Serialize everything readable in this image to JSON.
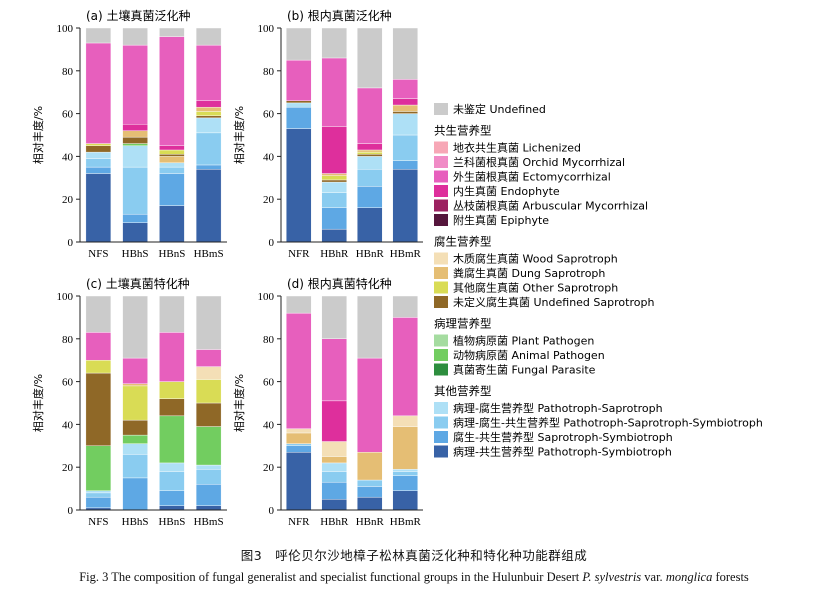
{
  "figure": {
    "caption_zh": "图3　呼伦贝尔沙地樟子松林真菌泛化种和特化种功能群组成",
    "caption_en": "Fig. 3   The composition of fungal generalist and specialist functional groups in the Hulunbuir Desert P. sylvestris var. monglica forests",
    "caption_en_parts": [
      "Fig. 3   The composition of fungal generalist and specialist functional groups in the Hulunbuir Desert ",
      "P. sylvestris",
      " var. ",
      "monglica",
      " forests"
    ]
  },
  "legend": {
    "groups": [
      {
        "heading": "",
        "items": [
          {
            "key": "undefined",
            "label": "未鉴定 Undefined",
            "color": "#cbcbcb"
          }
        ]
      },
      {
        "heading": "共生营养型",
        "items": [
          {
            "key": "lichenized",
            "label": "地衣共生真菌 Lichenized",
            "color": "#f7a7b6"
          },
          {
            "key": "orchid",
            "label": "兰科菌根真菌 Orchid Mycorrhizal",
            "color": "#f08bc6"
          },
          {
            "key": "ecto",
            "label": "外生菌根真菌 Ectomycorrhizal",
            "color": "#e75fbd"
          },
          {
            "key": "endo",
            "label": "内生真菌 Endophyte",
            "color": "#de2f9c"
          },
          {
            "key": "arbuscular",
            "label": "丛枝菌根真菌 Arbuscular Mycorrhizal",
            "color": "#9c2160"
          },
          {
            "key": "epiphyte",
            "label": "附生真菌 Epiphyte",
            "color": "#55163c"
          }
        ]
      },
      {
        "heading": "腐生营养型",
        "items": [
          {
            "key": "wood",
            "label": "木质腐生真菌 Wood Saprotroph",
            "color": "#f4dfb6"
          },
          {
            "key": "dung",
            "label": "粪腐生真菌 Dung Saprotroph",
            "color": "#e5be74"
          },
          {
            "key": "other_sap",
            "label": "其他腐生真菌 Other Saprotroph",
            "color": "#d9dc55"
          },
          {
            "key": "undef_sap",
            "label": "未定义腐生真菌 Undefined Saprotroph",
            "color": "#8f6827"
          }
        ]
      },
      {
        "heading": "病理营养型",
        "items": [
          {
            "key": "plant_path",
            "label": "植物病原菌 Plant Pathogen",
            "color": "#a5dca0"
          },
          {
            "key": "animal_path",
            "label": "动物病原菌 Animal Pathogen",
            "color": "#72cd60"
          },
          {
            "key": "fungal_par",
            "label": "真菌寄生菌 Fungal Parasite",
            "color": "#2d8e3e"
          }
        ]
      },
      {
        "heading": "其他营养型",
        "items": [
          {
            "key": "path_sap",
            "label": "病理-腐生营养型 Pathotroph-Saprotroph",
            "color": "#aee0f6"
          },
          {
            "key": "path_sap_sym",
            "label": "病理-腐生-共生营养型 Pathotroph-Saprotroph-Symbiotroph",
            "color": "#8accf0"
          },
          {
            "key": "sap_sym",
            "label": "腐生-共生营养型 Saprotroph-Symbiotroph",
            "color": "#5ea8e4"
          },
          {
            "key": "path_sym",
            "label": "病理-共生营养型 Pathotroph-Symbiotroph",
            "color": "#3862a6"
          }
        ]
      }
    ]
  },
  "chart_data": [
    {
      "type": "bar",
      "stacked": true,
      "title": "(a) 土壤真菌泛化种",
      "ylabel": "相对丰度/%",
      "ylim": [
        0,
        100
      ],
      "yticks": [
        0,
        20,
        40,
        60,
        80,
        100
      ],
      "categories": [
        "NFS",
        "HBhS",
        "HBnS",
        "HBmS"
      ],
      "bars": [
        [
          {
            "k": "path_sym",
            "v": 32
          },
          {
            "k": "sap_sym",
            "v": 3
          },
          {
            "k": "path_sap_sym",
            "v": 4
          },
          {
            "k": "path_sap",
            "v": 3
          },
          {
            "k": "undef_sap",
            "v": 3
          },
          {
            "k": "other_sap",
            "v": 1
          },
          {
            "k": "ecto",
            "v": 47
          },
          {
            "k": "undefined",
            "v": 7
          }
        ],
        [
          {
            "k": "path_sym",
            "v": 9
          },
          {
            "k": "sap_sym",
            "v": 4
          },
          {
            "k": "path_sap_sym",
            "v": 22
          },
          {
            "k": "path_sap",
            "v": 10
          },
          {
            "k": "animal_path",
            "v": 1
          },
          {
            "k": "undef_sap",
            "v": 3
          },
          {
            "k": "dung",
            "v": 3
          },
          {
            "k": "endo",
            "v": 3
          },
          {
            "k": "ecto",
            "v": 37
          },
          {
            "k": "undefined",
            "v": 8
          }
        ],
        [
          {
            "k": "path_sym",
            "v": 17
          },
          {
            "k": "sap_sym",
            "v": 15
          },
          {
            "k": "path_sap_sym",
            "v": 3
          },
          {
            "k": "path_sap",
            "v": 2
          },
          {
            "k": "dung",
            "v": 3
          },
          {
            "k": "undef_sap",
            "v": 1
          },
          {
            "k": "other_sap",
            "v": 2
          },
          {
            "k": "endo",
            "v": 2
          },
          {
            "k": "ecto",
            "v": 51
          },
          {
            "k": "undefined",
            "v": 4
          }
        ],
        [
          {
            "k": "path_sym",
            "v": 34
          },
          {
            "k": "sap_sym",
            "v": 2
          },
          {
            "k": "path_sap_sym",
            "v": 15
          },
          {
            "k": "path_sap",
            "v": 7
          },
          {
            "k": "undef_sap",
            "v": 1
          },
          {
            "k": "other_sap",
            "v": 2
          },
          {
            "k": "dung",
            "v": 2
          },
          {
            "k": "endo",
            "v": 3
          },
          {
            "k": "ecto",
            "v": 26
          },
          {
            "k": "undefined",
            "v": 8
          }
        ]
      ]
    },
    {
      "type": "bar",
      "stacked": true,
      "title": "(b) 根内真菌泛化种",
      "ylabel": "相对丰度/%",
      "ylim": [
        0,
        100
      ],
      "yticks": [
        0,
        20,
        40,
        60,
        80,
        100
      ],
      "categories": [
        "NFR",
        "HBhR",
        "HBnR",
        "HBmR"
      ],
      "bars": [
        [
          {
            "k": "path_sym",
            "v": 53
          },
          {
            "k": "sap_sym",
            "v": 10
          },
          {
            "k": "path_sap",
            "v": 2
          },
          {
            "k": "undef_sap",
            "v": 1
          },
          {
            "k": "ecto",
            "v": 19
          },
          {
            "k": "undefined",
            "v": 15
          }
        ],
        [
          {
            "k": "path_sym",
            "v": 6
          },
          {
            "k": "sap_sym",
            "v": 10
          },
          {
            "k": "path_sap_sym",
            "v": 7
          },
          {
            "k": "path_sap",
            "v": 5
          },
          {
            "k": "undef_sap",
            "v": 1
          },
          {
            "k": "other_sap",
            "v": 2
          },
          {
            "k": "dung",
            "v": 1
          },
          {
            "k": "endo",
            "v": 22
          },
          {
            "k": "ecto",
            "v": 32
          },
          {
            "k": "undefined",
            "v": 14
          }
        ],
        [
          {
            "k": "path_sym",
            "v": 16
          },
          {
            "k": "sap_sym",
            "v": 10
          },
          {
            "k": "path_sap_sym",
            "v": 8
          },
          {
            "k": "path_sap",
            "v": 6
          },
          {
            "k": "undef_sap",
            "v": 1
          },
          {
            "k": "other_sap",
            "v": 1
          },
          {
            "k": "dung",
            "v": 1
          },
          {
            "k": "endo",
            "v": 3
          },
          {
            "k": "ecto",
            "v": 26
          },
          {
            "k": "undefined",
            "v": 28
          }
        ],
        [
          {
            "k": "path_sym",
            "v": 34
          },
          {
            "k": "sap_sym",
            "v": 4
          },
          {
            "k": "path_sap_sym",
            "v": 12
          },
          {
            "k": "path_sap",
            "v": 10
          },
          {
            "k": "undef_sap",
            "v": 1
          },
          {
            "k": "dung",
            "v": 3
          },
          {
            "k": "endo",
            "v": 3
          },
          {
            "k": "ecto",
            "v": 9
          },
          {
            "k": "undefined",
            "v": 24
          }
        ]
      ]
    },
    {
      "type": "bar",
      "stacked": true,
      "title": "(c) 土壤真菌特化种",
      "ylabel": "相对丰度/%",
      "ylim": [
        0,
        100
      ],
      "yticks": [
        0,
        20,
        40,
        60,
        80,
        100
      ],
      "categories": [
        "NFS",
        "HBhS",
        "HBnS",
        "HBmS"
      ],
      "bars": [
        [
          {
            "k": "path_sym",
            "v": 1
          },
          {
            "k": "sap_sym",
            "v": 5
          },
          {
            "k": "path_sap_sym",
            "v": 2
          },
          {
            "k": "path_sap",
            "v": 1
          },
          {
            "k": "animal_path",
            "v": 21
          },
          {
            "k": "undef_sap",
            "v": 34
          },
          {
            "k": "other_sap",
            "v": 6
          },
          {
            "k": "ecto",
            "v": 13
          },
          {
            "k": "undefined",
            "v": 17
          }
        ],
        [
          {
            "k": "sap_sym",
            "v": 15
          },
          {
            "k": "path_sap_sym",
            "v": 11
          },
          {
            "k": "path_sap",
            "v": 5
          },
          {
            "k": "animal_path",
            "v": 4
          },
          {
            "k": "undef_sap",
            "v": 7
          },
          {
            "k": "other_sap",
            "v": 16
          },
          {
            "k": "dung",
            "v": 1
          },
          {
            "k": "ecto",
            "v": 12
          },
          {
            "k": "undefined",
            "v": 29
          }
        ],
        [
          {
            "k": "path_sym",
            "v": 2
          },
          {
            "k": "sap_sym",
            "v": 7
          },
          {
            "k": "path_sap_sym",
            "v": 9
          },
          {
            "k": "path_sap",
            "v": 4
          },
          {
            "k": "animal_path",
            "v": 22
          },
          {
            "k": "undef_sap",
            "v": 8
          },
          {
            "k": "other_sap",
            "v": 8
          },
          {
            "k": "ecto",
            "v": 23
          },
          {
            "k": "undefined",
            "v": 17
          }
        ],
        [
          {
            "k": "path_sym",
            "v": 2
          },
          {
            "k": "sap_sym",
            "v": 10
          },
          {
            "k": "path_sap_sym",
            "v": 7
          },
          {
            "k": "path_sap",
            "v": 2
          },
          {
            "k": "animal_path",
            "v": 18
          },
          {
            "k": "undef_sap",
            "v": 11
          },
          {
            "k": "other_sap",
            "v": 11
          },
          {
            "k": "wood",
            "v": 6
          },
          {
            "k": "ecto",
            "v": 8
          },
          {
            "k": "undefined",
            "v": 25
          }
        ]
      ]
    },
    {
      "type": "bar",
      "stacked": true,
      "title": "(d) 根内真菌特化种",
      "ylabel": "相对丰度/%",
      "ylim": [
        0,
        100
      ],
      "yticks": [
        0,
        20,
        40,
        60,
        80,
        100
      ],
      "categories": [
        "NFR",
        "HBhR",
        "HBnR",
        "HBmR"
      ],
      "bars": [
        [
          {
            "k": "path_sym",
            "v": 27
          },
          {
            "k": "sap_sym",
            "v": 3
          },
          {
            "k": "path_sap_sym",
            "v": 1
          },
          {
            "k": "dung",
            "v": 5
          },
          {
            "k": "wood",
            "v": 2
          },
          {
            "k": "ecto",
            "v": 54
          },
          {
            "k": "undefined",
            "v": 8
          }
        ],
        [
          {
            "k": "path_sym",
            "v": 5
          },
          {
            "k": "sap_sym",
            "v": 8
          },
          {
            "k": "path_sap_sym",
            "v": 5
          },
          {
            "k": "path_sap",
            "v": 4
          },
          {
            "k": "dung",
            "v": 3
          },
          {
            "k": "wood",
            "v": 7
          },
          {
            "k": "endo",
            "v": 19
          },
          {
            "k": "ecto",
            "v": 29
          },
          {
            "k": "undefined",
            "v": 20
          }
        ],
        [
          {
            "k": "path_sym",
            "v": 6
          },
          {
            "k": "sap_sym",
            "v": 5
          },
          {
            "k": "path_sap_sym",
            "v": 3
          },
          {
            "k": "dung",
            "v": 13
          },
          {
            "k": "ecto",
            "v": 44
          },
          {
            "k": "undefined",
            "v": 29
          }
        ],
        [
          {
            "k": "path_sym",
            "v": 9
          },
          {
            "k": "sap_sym",
            "v": 7
          },
          {
            "k": "path_sap_sym",
            "v": 2
          },
          {
            "k": "path_sap",
            "v": 1
          },
          {
            "k": "dung",
            "v": 20
          },
          {
            "k": "wood",
            "v": 5
          },
          {
            "k": "ecto",
            "v": 46
          },
          {
            "k": "undefined",
            "v": 10
          }
        ]
      ]
    }
  ]
}
